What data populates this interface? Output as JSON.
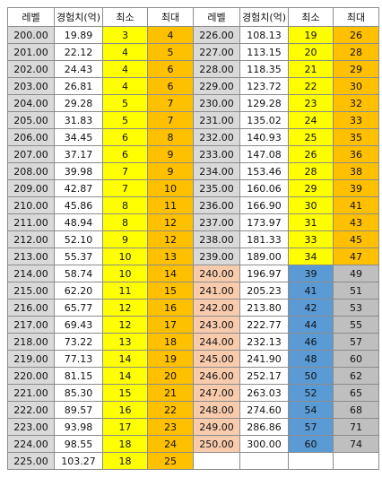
{
  "headers": [
    "레벨",
    "경험치(억)",
    "최소",
    "최대",
    "레벨",
    "경험치(억)",
    "최소",
    "최대"
  ],
  "rows": [
    [
      "200.00",
      "19.89",
      "3",
      "4",
      "226.00",
      "108.13",
      "19",
      "26"
    ],
    [
      "201.00",
      "22.12",
      "4",
      "5",
      "227.00",
      "113.15",
      "20",
      "28"
    ],
    [
      "202.00",
      "24.43",
      "4",
      "6",
      "228.00",
      "118.35",
      "21",
      "29"
    ],
    [
      "203.00",
      "26.81",
      "4",
      "6",
      "229.00",
      "123.72",
      "22",
      "30"
    ],
    [
      "204.00",
      "29.28",
      "5",
      "7",
      "230.00",
      "129.28",
      "23",
      "32"
    ],
    [
      "205.00",
      "31.83",
      "5",
      "7",
      "231.00",
      "135.02",
      "24",
      "33"
    ],
    [
      "206.00",
      "34.45",
      "6",
      "8",
      "232.00",
      "140.93",
      "25",
      "35"
    ],
    [
      "207.00",
      "37.17",
      "6",
      "9",
      "233.00",
      "147.08",
      "26",
      "36"
    ],
    [
      "208.00",
      "39.98",
      "7",
      "9",
      "234.00",
      "153.46",
      "28",
      "38"
    ],
    [
      "209.00",
      "42.87",
      "7",
      "10",
      "235.00",
      "160.06",
      "29",
      "39"
    ],
    [
      "210.00",
      "45.86",
      "8",
      "11",
      "236.00",
      "166.90",
      "30",
      "41"
    ],
    [
      "211.00",
      "48.94",
      "8",
      "12",
      "237.00",
      "173.97",
      "31",
      "43"
    ],
    [
      "212.00",
      "52.10",
      "9",
      "12",
      "238.00",
      "181.33",
      "33",
      "45"
    ],
    [
      "213.00",
      "55.37",
      "10",
      "13",
      "239.00",
      "189.00",
      "34",
      "47"
    ],
    [
      "214.00",
      "58.74",
      "10",
      "14",
      "240.00",
      "196.97",
      "39",
      "49"
    ],
    [
      "215.00",
      "62.20",
      "11",
      "15",
      "241.00",
      "205.23",
      "41",
      "51"
    ],
    [
      "216.00",
      "65.77",
      "12",
      "16",
      "242.00",
      "213.80",
      "42",
      "53"
    ],
    [
      "217.00",
      "69.43",
      "12",
      "17",
      "243.00",
      "222.77",
      "44",
      "55"
    ],
    [
      "218.00",
      "73.22",
      "13",
      "18",
      "244.00",
      "232.13",
      "46",
      "57"
    ],
    [
      "219.00",
      "77.13",
      "14",
      "19",
      "245.00",
      "241.90",
      "48",
      "60"
    ],
    [
      "220.00",
      "81.15",
      "14",
      "20",
      "246.00",
      "252.17",
      "50",
      "62"
    ],
    [
      "221.00",
      "85.30",
      "15",
      "21",
      "247.00",
      "263.03",
      "52",
      "65"
    ],
    [
      "222.00",
      "89.57",
      "16",
      "22",
      "248.00",
      "274.60",
      "54",
      "68"
    ],
    [
      "223.00",
      "93.98",
      "17",
      "23",
      "249.00",
      "286.86",
      "57",
      "71"
    ],
    [
      "224.00",
      "98.55",
      "18",
      "24",
      "250.00",
      "300.00",
      "60",
      "74"
    ],
    [
      "225.00",
      "103.27",
      "18",
      "25",
      "",
      "",
      "",
      ""
    ]
  ],
  "colors": {
    "level_left": "#d9d9d9",
    "level_right_upper": "#d9d9d9",
    "level_right_lower": "#f8cbad",
    "min": "#ffff00",
    "max": "#ffc000",
    "min_right_lower": "#5b9bd5",
    "max_right_lower": "#bfbfbf",
    "exp": "#ffffff"
  }
}
